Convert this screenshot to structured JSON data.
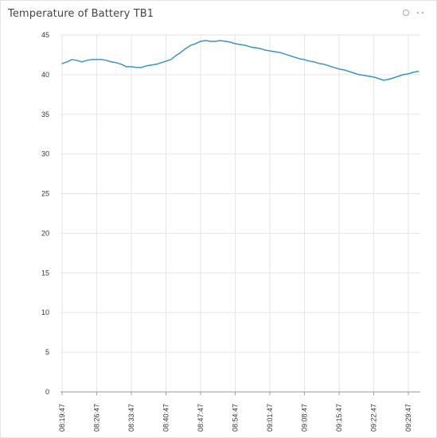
{
  "widget": {
    "title": "Temperature of Battery TB1",
    "actions": [
      {
        "name": "refresh-icon"
      },
      {
        "name": "more-options-icon"
      }
    ]
  },
  "colors": {
    "line": "#3a94c0",
    "grid": "#e6e6e6",
    "axis": "#9a9a9a",
    "text": "#333333"
  },
  "chart_data": {
    "type": "line",
    "title": "",
    "xlabel": "",
    "ylabel": "",
    "ylim": [
      0,
      45
    ],
    "yticks": [
      0,
      5,
      10,
      15,
      20,
      25,
      30,
      35,
      40,
      45
    ],
    "xticks": [
      "08:19:47",
      "08:26:47",
      "08:33:47",
      "08:40:47",
      "08:47:47",
      "08:54:47",
      "09:01:47",
      "09:08:47",
      "09:15:47",
      "09:22:47",
      "09:29:47"
    ],
    "grid": true,
    "legend": false,
    "series": [
      {
        "x": [
          "08:19:47",
          "08:20:47",
          "08:21:47",
          "08:22:47",
          "08:23:47",
          "08:24:47",
          "08:25:47",
          "08:26:47",
          "08:27:47",
          "08:28:47",
          "08:29:47",
          "08:30:47",
          "08:31:47",
          "08:32:47",
          "08:33:47",
          "08:34:47",
          "08:35:47",
          "08:36:47",
          "08:37:47",
          "08:38:47",
          "08:39:47",
          "08:40:47",
          "08:41:47",
          "08:42:47",
          "08:43:47",
          "08:44:47",
          "08:45:47",
          "08:46:47",
          "08:47:47",
          "08:48:47",
          "08:49:47",
          "08:50:47",
          "08:51:47",
          "08:52:47",
          "08:53:47",
          "08:54:47",
          "08:55:47",
          "08:56:47",
          "08:57:47",
          "08:58:47",
          "08:59:47",
          "09:00:47",
          "09:01:47",
          "09:02:47",
          "09:03:47",
          "09:04:47",
          "09:05:47",
          "09:06:47",
          "09:07:47",
          "09:08:47",
          "09:09:47",
          "09:10:47",
          "09:11:47",
          "09:12:47",
          "09:13:47",
          "09:14:47",
          "09:15:47",
          "09:16:47",
          "09:17:47",
          "09:18:47",
          "09:19:47",
          "09:20:47",
          "09:21:47",
          "09:22:47",
          "09:23:47",
          "09:24:47",
          "09:25:47",
          "09:26:47",
          "09:27:47",
          "09:28:47",
          "09:29:47",
          "09:30:47",
          "09:31:47"
        ],
        "values": [
          41.4,
          41.6,
          41.9,
          41.8,
          41.6,
          41.8,
          41.9,
          41.9,
          41.9,
          41.8,
          41.6,
          41.5,
          41.3,
          41.0,
          41.0,
          40.9,
          40.9,
          41.1,
          41.2,
          41.3,
          41.5,
          41.7,
          41.9,
          42.4,
          42.8,
          43.3,
          43.7,
          43.9,
          44.2,
          44.3,
          44.2,
          44.2,
          44.3,
          44.2,
          44.1,
          43.9,
          43.8,
          43.7,
          43.5,
          43.4,
          43.3,
          43.1,
          43.0,
          42.9,
          42.8,
          42.6,
          42.4,
          42.2,
          42.0,
          41.9,
          41.7,
          41.6,
          41.4,
          41.3,
          41.1,
          40.9,
          40.7,
          40.6,
          40.4,
          40.2,
          40.0,
          39.9,
          39.8,
          39.7,
          39.5,
          39.3,
          39.4,
          39.6,
          39.8,
          40.0,
          40.1,
          40.3,
          40.4
        ]
      }
    ]
  }
}
